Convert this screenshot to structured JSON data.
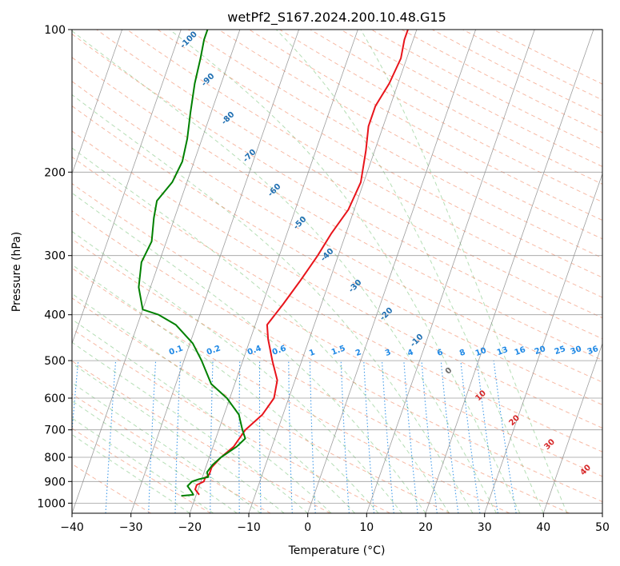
{
  "chart_data": {
    "type": "line",
    "subtype": "skew-t log-p",
    "title": "wetPf2_S167.2024.200.10.48.G15",
    "xlabel": "Temperature (°C)",
    "ylabel": "Pressure (hPa)",
    "xlim": [
      -40,
      50
    ],
    "ylim": [
      1050,
      100
    ],
    "y_scale": "log",
    "grid": true,
    "x_ticks": [
      -40,
      -30,
      -20,
      -10,
      0,
      10,
      20,
      30,
      40,
      50
    ],
    "y_ticks": [
      100,
      200,
      300,
      400,
      500,
      600,
      700,
      800,
      900,
      1000
    ],
    "series": [
      {
        "color": "#e8141b",
        "pressure": [
          960,
          935,
          915,
          900,
          885,
          870,
          840,
          800,
          760,
          700,
          650,
          600,
          550,
          500,
          450,
          420,
          380,
          340,
          300,
          270,
          240,
          210,
          180,
          160,
          145,
          130,
          115,
          105,
          100
        ],
        "temperature": [
          -19.5,
          -20.5,
          -20.5,
          -19.5,
          -19.5,
          -19.0,
          -19.0,
          -18.0,
          -16.5,
          -15.5,
          -13.5,
          -12.5,
          -13.0,
          -15.0,
          -17.0,
          -18.0,
          -16.5,
          -15.0,
          -13.5,
          -12.5,
          -11.0,
          -10.5,
          -11.5,
          -12.5,
          -12.5,
          -11.5,
          -11.0,
          -11.5,
          -11.5
        ]
      },
      {
        "color": "#008000",
        "pressure": [
          965,
          960,
          945,
          920,
          900,
          890,
          880,
          860,
          830,
          800,
          760,
          730,
          700,
          650,
          600,
          560,
          500,
          460,
          420,
          400,
          390,
          350,
          310,
          280,
          250,
          230,
          210,
          190,
          170,
          150,
          130,
          115,
          105,
          100
        ],
        "temperature": [
          -22.5,
          -20.5,
          -21.0,
          -22.0,
          -21.5,
          -20.5,
          -19.0,
          -19.5,
          -19.0,
          -18.0,
          -16.0,
          -15.0,
          -16.0,
          -17.5,
          -20.5,
          -24.0,
          -27.0,
          -29.5,
          -33.5,
          -37.0,
          -40.0,
          -42.0,
          -43.0,
          -42.5,
          -43.5,
          -44.0,
          -42.5,
          -42.0,
          -42.5,
          -43.5,
          -44.5,
          -45.0,
          -45.5,
          -45.5
        ]
      }
    ],
    "dry_adiabat_labels": [
      "-100",
      "-90",
      "-80",
      "-70",
      "-60",
      "-50",
      "-40",
      "-30",
      "-20",
      "-10"
    ],
    "moist_adiabat_labels": [
      "0",
      "10",
      "20",
      "30",
      "40"
    ],
    "mixing_ratio_labels": [
      "0.1",
      "0.2",
      "0.4",
      "0.6",
      "1",
      "1.5",
      "2",
      "3",
      "4",
      "6",
      "8",
      "10",
      "13",
      "16",
      "20",
      "25",
      "30",
      "36"
    ]
  }
}
